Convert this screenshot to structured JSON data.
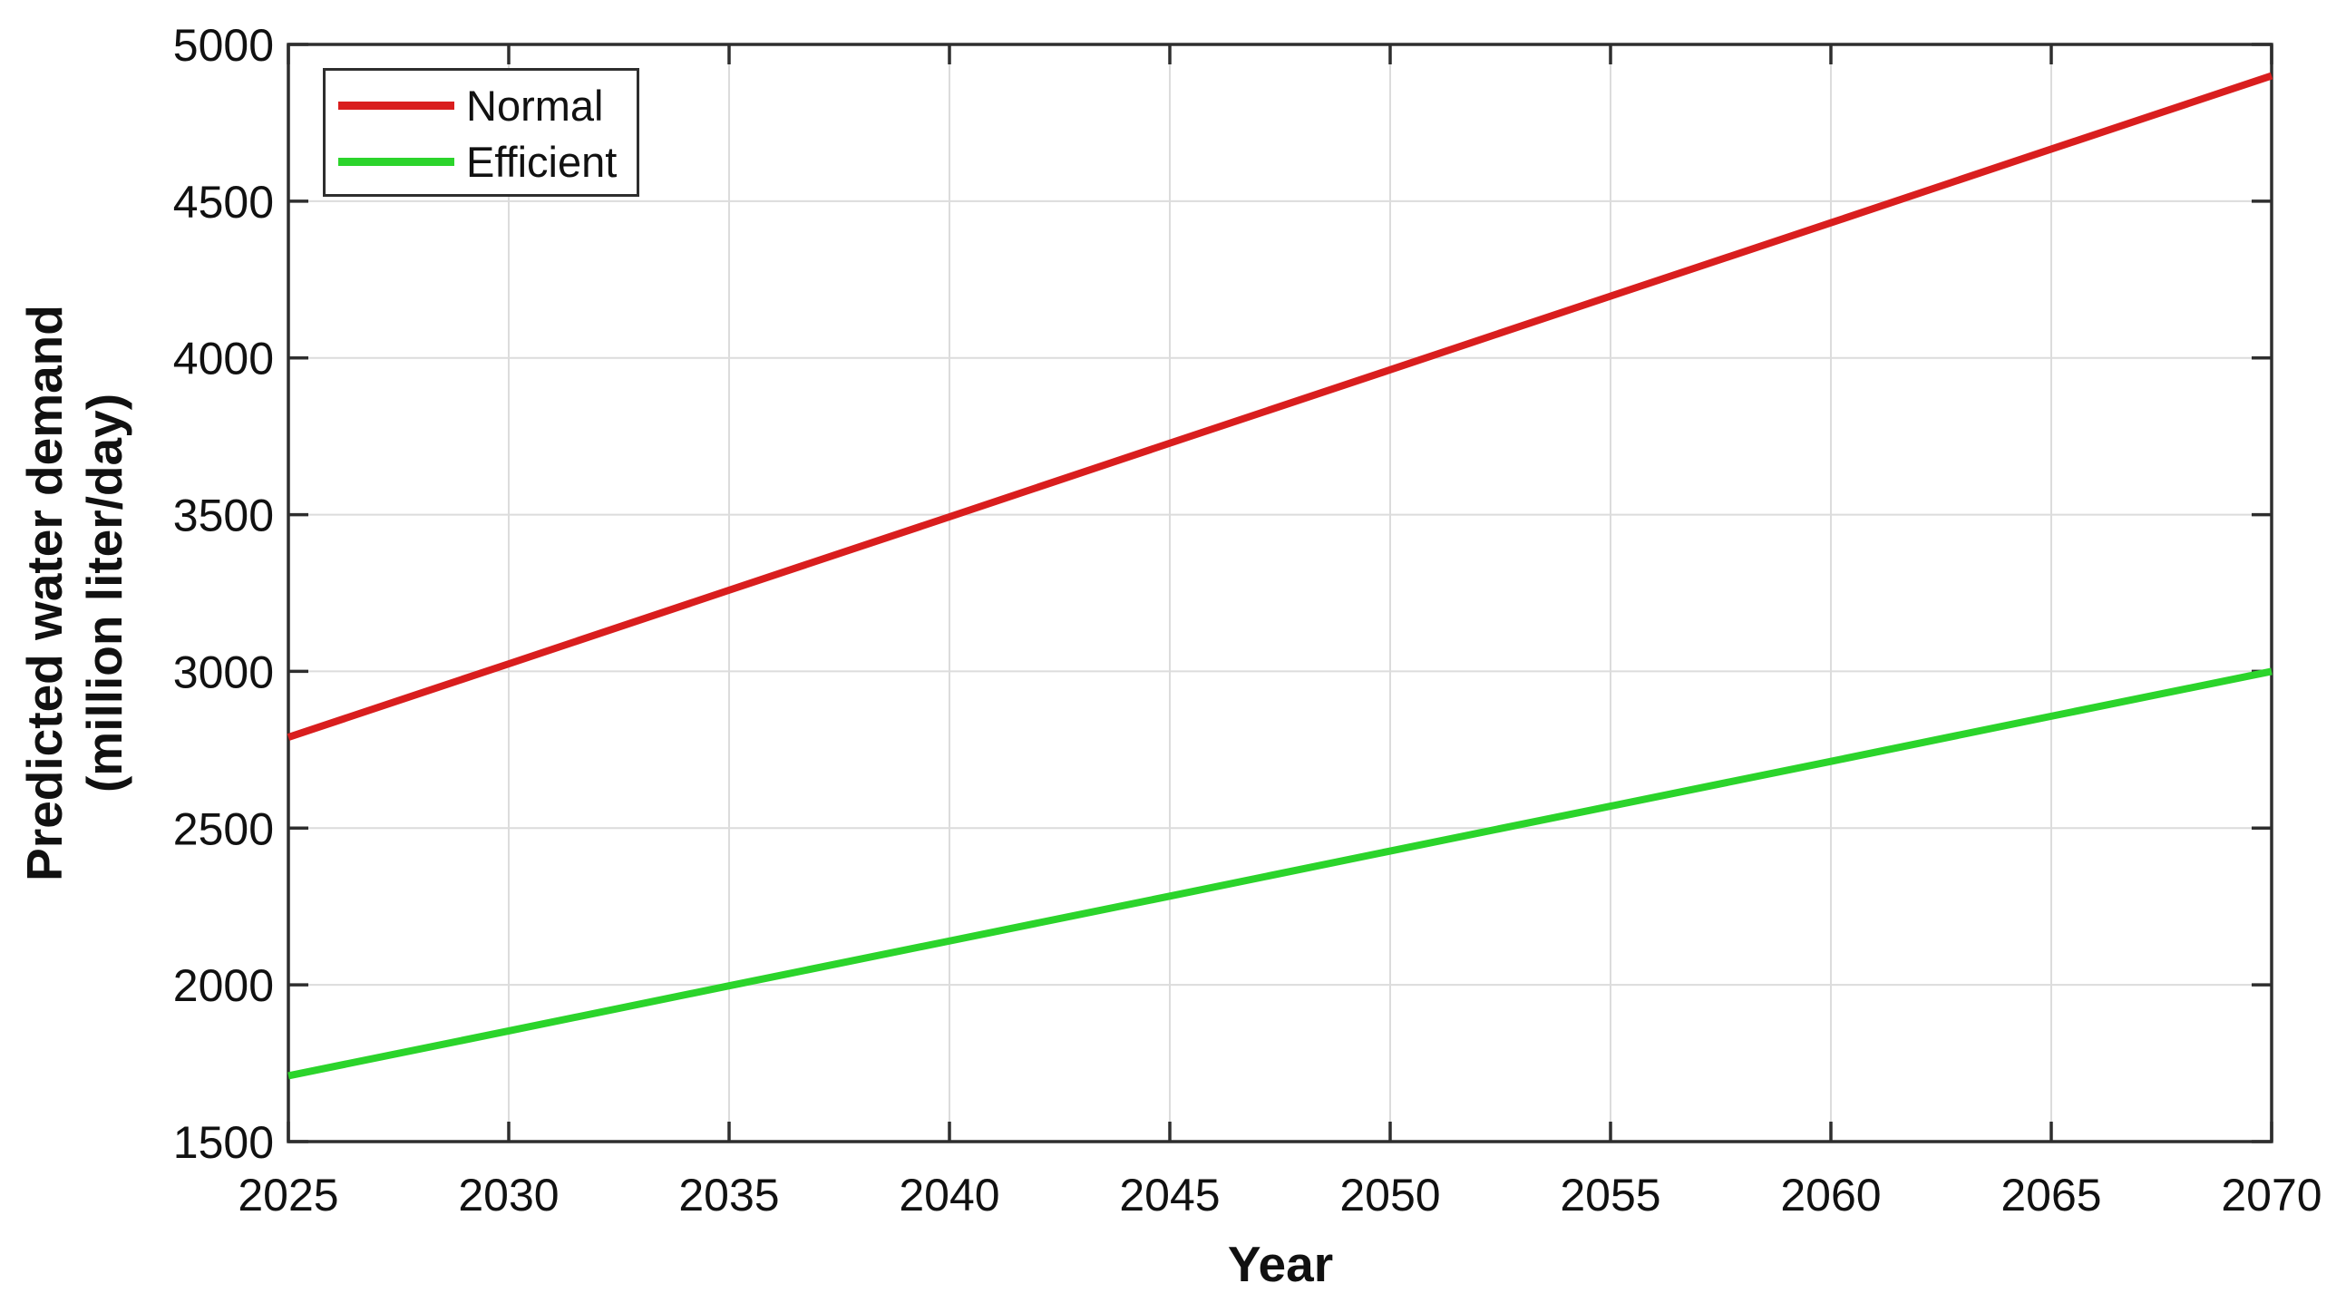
{
  "figure": {
    "background": "#ffffff",
    "axis_color": "#2e2e2e",
    "grid_color": "#dcdcdc",
    "text_color": "#111111"
  },
  "chart_data": {
    "type": "line",
    "title": "",
    "xlabel": "Year",
    "ylabel": "Predicted water demand (million liter/day)",
    "ylabel_lines": [
      "Predicted water demand",
      "(million liter/day)"
    ],
    "xlim": [
      2025,
      2070
    ],
    "ylim": [
      1500,
      5000
    ],
    "xticks": [
      2025,
      2030,
      2035,
      2040,
      2045,
      2050,
      2055,
      2060,
      2065,
      2070
    ],
    "yticks": [
      1500,
      2000,
      2500,
      3000,
      3500,
      4000,
      4500,
      5000
    ],
    "grid": true,
    "legend_position": "top-left",
    "x": [
      2025,
      2030,
      2035,
      2040,
      2045,
      2050,
      2055,
      2060,
      2065,
      2070
    ],
    "series": [
      {
        "name": "Normal",
        "color": "#d91e1e",
        "values": [
          2790,
          3024,
          3259,
          3493,
          3728,
          3962,
          4197,
          4431,
          4666,
          4900
        ]
      },
      {
        "name": "Efficient",
        "color": "#2bd42b",
        "values": [
          1710,
          1853,
          1997,
          2140,
          2283,
          2427,
          2570,
          2713,
          2857,
          3000
        ]
      }
    ]
  }
}
